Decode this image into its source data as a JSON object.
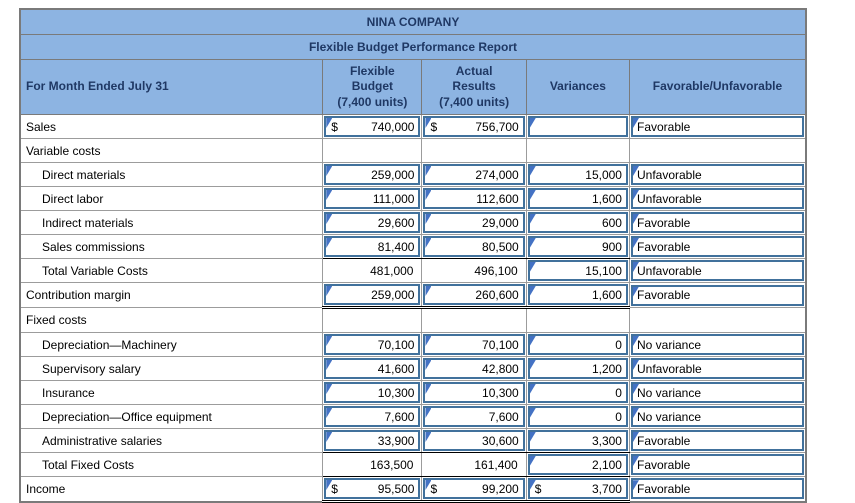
{
  "report": {
    "title": "NINA COMPANY",
    "subtitle": "Flexible Budget Performance Report",
    "columns": {
      "row_label": "For Month Ended July 31",
      "flexible_budget": "Flexible\nBudget\n(7,400 units)",
      "actual_results": "Actual\nResults\n(7,400 units)",
      "variances": "Variances",
      "favorable_unfavorable": "Favorable/Unfavorable"
    },
    "colors": {
      "header_bg": "#8DB4E2",
      "header_text": "#1F3864",
      "input_border": "#41719C",
      "flag_marker": "#4472C4",
      "gridline": "#9C9C9C",
      "outer_border": "#7A7A7A",
      "rule": "#000000"
    }
  },
  "rows": [
    {
      "label": "Sales",
      "indent": false,
      "cells": [
        {
          "dollar": "$",
          "value": "740,000",
          "box": true
        },
        {
          "dollar": "$",
          "value": "756,700",
          "box": true
        },
        {
          "value": "",
          "box": true
        },
        {
          "value": "Favorable",
          "box": true,
          "text": true
        }
      ]
    },
    {
      "label": "Variable costs",
      "indent": false,
      "cells": [
        null,
        null,
        null,
        null
      ]
    },
    {
      "label": "Direct materials",
      "indent": true,
      "cells": [
        {
          "value": "259,000",
          "box": true
        },
        {
          "value": "274,000",
          "box": true
        },
        {
          "value": "15,000",
          "box": true
        },
        {
          "value": "Unfavorable",
          "box": true,
          "text": true
        }
      ]
    },
    {
      "label": "Direct labor",
      "indent": true,
      "cells": [
        {
          "value": "111,000",
          "box": true
        },
        {
          "value": "112,600",
          "box": true
        },
        {
          "value": "1,600",
          "box": true
        },
        {
          "value": "Unfavorable",
          "box": true,
          "text": true
        }
      ]
    },
    {
      "label": "Indirect materials",
      "indent": true,
      "cells": [
        {
          "value": "29,600",
          "box": true
        },
        {
          "value": "29,000",
          "box": true
        },
        {
          "value": "600",
          "box": true
        },
        {
          "value": "Favorable",
          "box": true,
          "text": true
        }
      ]
    },
    {
      "label": "Sales commissions",
      "indent": true,
      "rule_below": true,
      "cells": [
        {
          "value": "81,400",
          "box": true
        },
        {
          "value": "80,500",
          "box": true
        },
        {
          "value": "900",
          "box": true
        },
        {
          "value": "Favorable",
          "box": true,
          "text": true
        }
      ]
    },
    {
      "label": "Total Variable Costs",
      "indent": true,
      "cells": [
        {
          "value": "481,000",
          "box": false
        },
        {
          "value": "496,100",
          "box": false
        },
        {
          "value": "15,100",
          "box": true
        },
        {
          "value": "Unfavorable",
          "box": true,
          "text": true
        }
      ]
    },
    {
      "label": "Contribution margin",
      "indent": false,
      "cells": [
        {
          "value": "259,000",
          "box": true,
          "dbl_underline": true
        },
        {
          "value": "260,600",
          "box": true,
          "dbl_underline": true
        },
        {
          "value": "1,600",
          "box": true,
          "dbl_underline": true
        },
        {
          "value": "Favorable",
          "box": true,
          "text": true
        }
      ]
    },
    {
      "label": "Fixed costs",
      "indent": false,
      "cells": [
        null,
        null,
        null,
        null
      ]
    },
    {
      "label": "Depreciation—Machinery",
      "indent": true,
      "cells": [
        {
          "value": "70,100",
          "box": true
        },
        {
          "value": "70,100",
          "box": true
        },
        {
          "value": "0",
          "box": true
        },
        {
          "value": "No variance",
          "box": true,
          "text": true
        }
      ]
    },
    {
      "label": "Supervisory salary",
      "indent": true,
      "cells": [
        {
          "value": "41,600",
          "box": true
        },
        {
          "value": "42,800",
          "box": true
        },
        {
          "value": "1,200",
          "box": true
        },
        {
          "value": "Unfavorable",
          "box": true,
          "text": true
        }
      ]
    },
    {
      "label": "Insurance",
      "indent": true,
      "cells": [
        {
          "value": "10,300",
          "box": true
        },
        {
          "value": "10,300",
          "box": true
        },
        {
          "value": "0",
          "box": true
        },
        {
          "value": "No variance",
          "box": true,
          "text": true
        }
      ]
    },
    {
      "label": "Depreciation—Office equipment",
      "indent": true,
      "cells": [
        {
          "value": "7,600",
          "box": true
        },
        {
          "value": "7,600",
          "box": true
        },
        {
          "value": "0",
          "box": true
        },
        {
          "value": "No variance",
          "box": true,
          "text": true
        }
      ]
    },
    {
      "label": "Administrative salaries",
      "indent": true,
      "rule_below": true,
      "cells": [
        {
          "value": "33,900",
          "box": true
        },
        {
          "value": "30,600",
          "box": true
        },
        {
          "value": "3,300",
          "box": true
        },
        {
          "value": "Favorable",
          "box": true,
          "text": true
        }
      ]
    },
    {
      "label": "Total Fixed Costs",
      "indent": true,
      "rule_below": true,
      "cells": [
        {
          "value": "163,500",
          "box": false
        },
        {
          "value": "161,400",
          "box": false
        },
        {
          "value": "2,100",
          "box": true
        },
        {
          "value": "Favorable",
          "box": true,
          "text": true
        }
      ]
    },
    {
      "label": "Income",
      "indent": false,
      "cells": [
        {
          "dollar": "$",
          "value": "95,500",
          "box": true,
          "dbl_underline": true
        },
        {
          "dollar": "$",
          "value": "99,200",
          "box": true,
          "dbl_underline": true
        },
        {
          "dollar": "$",
          "value": "3,700",
          "box": true,
          "dbl_underline": true
        },
        {
          "value": "Favorable",
          "box": true,
          "text": true
        }
      ]
    }
  ]
}
